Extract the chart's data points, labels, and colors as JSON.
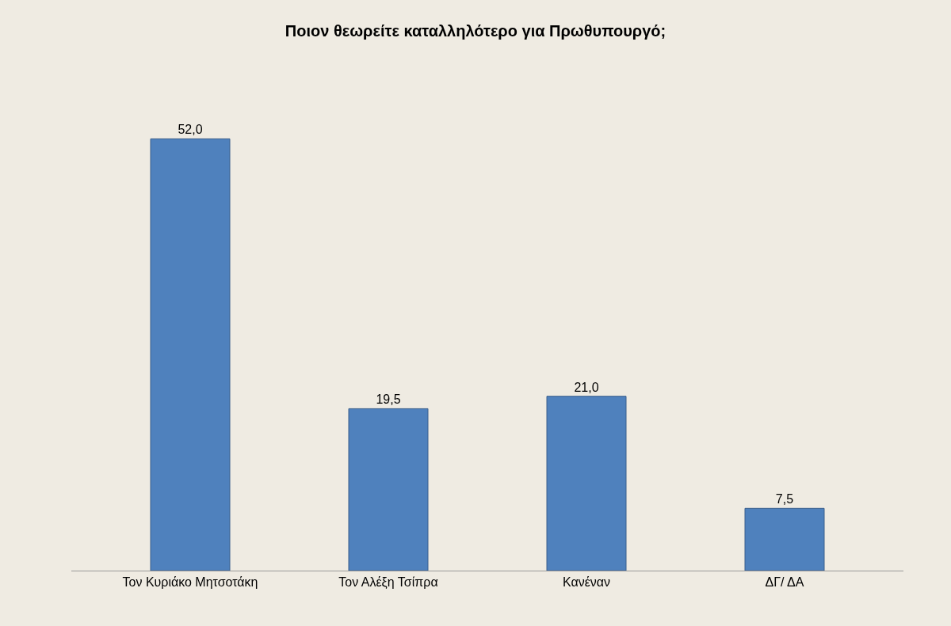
{
  "chart_data": {
    "type": "bar",
    "title": "Ποιον θεωρείτε καταλληλότερο για Πρωθυπουργό;",
    "categories": [
      "Τον Κυριάκο Μητσοτάκη",
      "Τον Αλέξη Τσίπρα",
      "Κανέναν",
      "ΔΓ/ ΔΑ"
    ],
    "values": [
      52.0,
      19.5,
      21.0,
      7.5
    ],
    "value_labels": [
      "52,0",
      "19,5",
      "21,0",
      "7,5"
    ],
    "color": "#4f81bd",
    "grid": false,
    "legend": false,
    "tick_labels": "x"
  }
}
